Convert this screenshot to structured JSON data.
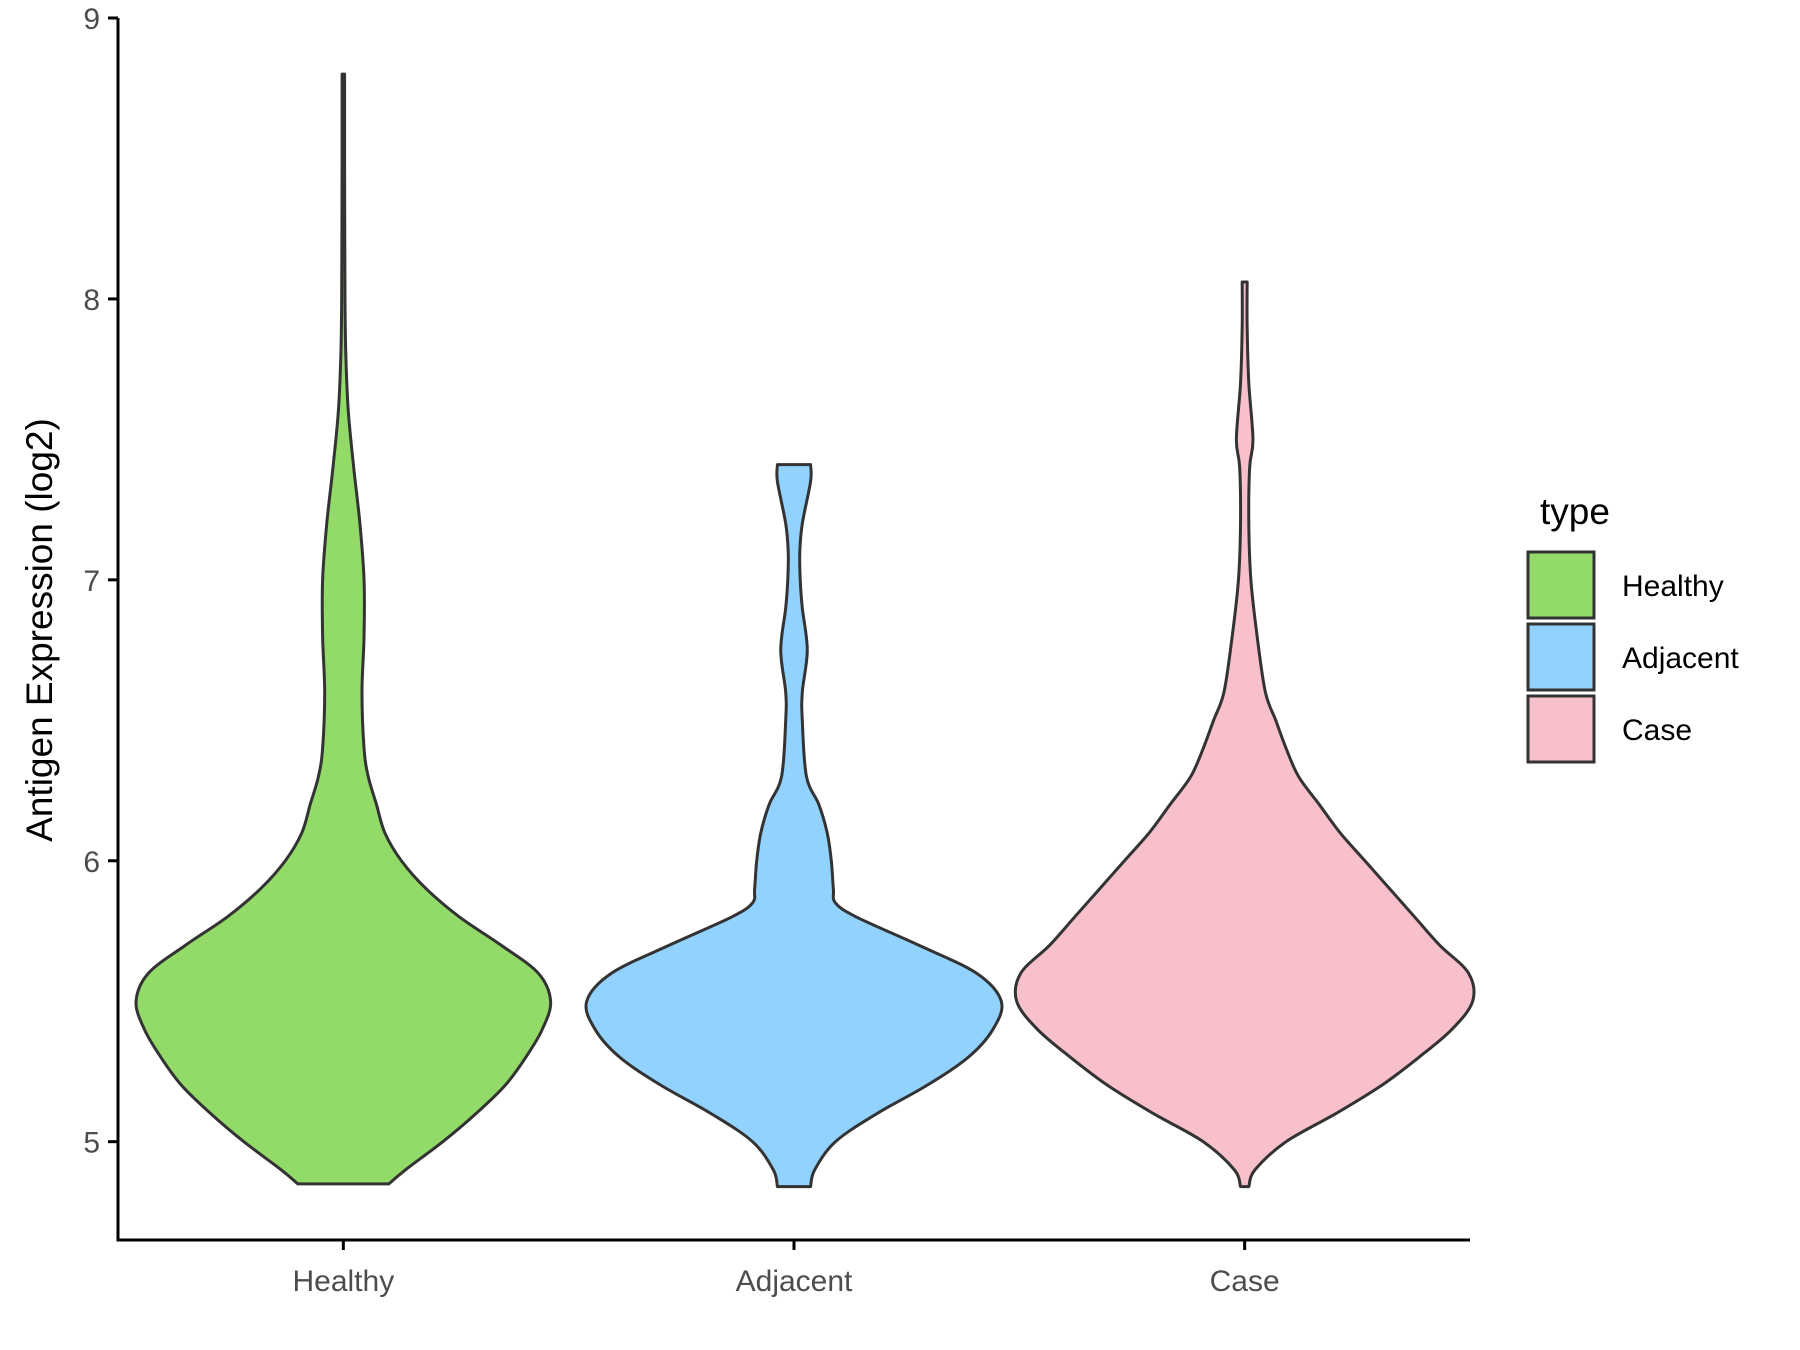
{
  "chart_data": {
    "type": "violin",
    "ylabel": "Antigen Expression (log2)",
    "xlabel": "",
    "ylim": [
      4.65,
      9.0
    ],
    "yticks": [
      5,
      6,
      7,
      8,
      9
    ],
    "categories": [
      "Healthy",
      "Adjacent",
      "Case"
    ],
    "legend": {
      "title": "type",
      "position": "right"
    },
    "grid": false,
    "series": [
      {
        "name": "Healthy",
        "color": "#93DB69",
        "range": [
          4.85,
          8.8
        ],
        "density": [
          [
            4.85,
            0.11
          ],
          [
            4.9,
            0.15
          ],
          [
            5.0,
            0.24
          ],
          [
            5.1,
            0.32
          ],
          [
            5.2,
            0.39
          ],
          [
            5.3,
            0.44
          ],
          [
            5.4,
            0.48
          ],
          [
            5.5,
            0.5
          ],
          [
            5.6,
            0.47
          ],
          [
            5.7,
            0.38
          ],
          [
            5.8,
            0.28
          ],
          [
            5.9,
            0.2
          ],
          [
            6.0,
            0.14
          ],
          [
            6.1,
            0.1
          ],
          [
            6.2,
            0.08
          ],
          [
            6.3,
            0.06
          ],
          [
            6.4,
            0.05
          ],
          [
            6.6,
            0.045
          ],
          [
            6.8,
            0.05
          ],
          [
            7.0,
            0.05
          ],
          [
            7.2,
            0.04
          ],
          [
            7.4,
            0.025
          ],
          [
            7.6,
            0.012
          ],
          [
            7.8,
            0.006
          ],
          [
            8.0,
            0.004
          ],
          [
            8.5,
            0.003
          ],
          [
            8.8,
            0.003
          ]
        ]
      },
      {
        "name": "Adjacent",
        "color": "#92D2FF",
        "range": [
          4.84,
          7.41
        ],
        "density": [
          [
            4.84,
            0.04
          ],
          [
            4.9,
            0.05
          ],
          [
            5.0,
            0.1
          ],
          [
            5.1,
            0.2
          ],
          [
            5.2,
            0.32
          ],
          [
            5.3,
            0.42
          ],
          [
            5.4,
            0.48
          ],
          [
            5.5,
            0.5
          ],
          [
            5.6,
            0.44
          ],
          [
            5.7,
            0.3
          ],
          [
            5.8,
            0.15
          ],
          [
            5.85,
            0.1
          ],
          [
            5.9,
            0.095
          ],
          [
            6.0,
            0.09
          ],
          [
            6.1,
            0.08
          ],
          [
            6.2,
            0.06
          ],
          [
            6.3,
            0.03
          ],
          [
            6.5,
            0.02
          ],
          [
            6.6,
            0.02
          ],
          [
            6.75,
            0.032
          ],
          [
            6.9,
            0.02
          ],
          [
            7.0,
            0.015
          ],
          [
            7.1,
            0.014
          ],
          [
            7.2,
            0.02
          ],
          [
            7.35,
            0.04
          ],
          [
            7.41,
            0.04
          ]
        ]
      },
      {
        "name": "Case",
        "color": "#F8C0CB",
        "range": [
          4.84,
          8.06
        ],
        "density": [
          [
            4.84,
            0.01
          ],
          [
            4.9,
            0.025
          ],
          [
            5.0,
            0.1
          ],
          [
            5.1,
            0.22
          ],
          [
            5.2,
            0.33
          ],
          [
            5.3,
            0.42
          ],
          [
            5.4,
            0.5
          ],
          [
            5.5,
            0.55
          ],
          [
            5.6,
            0.54
          ],
          [
            5.7,
            0.47
          ],
          [
            5.8,
            0.41
          ],
          [
            5.9,
            0.35
          ],
          [
            6.0,
            0.29
          ],
          [
            6.1,
            0.23
          ],
          [
            6.2,
            0.18
          ],
          [
            6.3,
            0.13
          ],
          [
            6.4,
            0.1
          ],
          [
            6.5,
            0.075
          ],
          [
            6.6,
            0.05
          ],
          [
            6.8,
            0.03
          ],
          [
            7.0,
            0.015
          ],
          [
            7.2,
            0.01
          ],
          [
            7.4,
            0.012
          ],
          [
            7.5,
            0.02
          ],
          [
            7.7,
            0.01
          ],
          [
            7.9,
            0.006
          ],
          [
            8.06,
            0.006
          ]
        ]
      }
    ]
  }
}
